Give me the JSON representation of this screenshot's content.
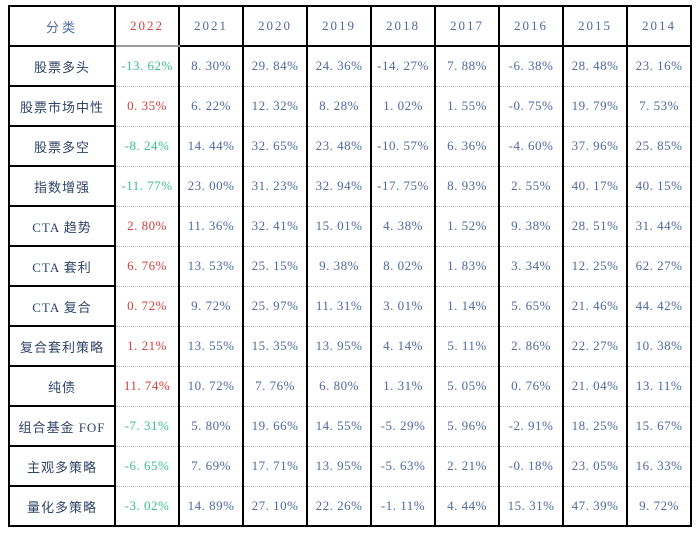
{
  "palette": {
    "background": "#ffffff",
    "grid_black": "#000000",
    "grid_dotted_gray": "#b5b5b5",
    "selected_border_gray": "#9c9c9c",
    "value_blue": "#4e6aa3",
    "label_dark": "#2e4468",
    "header_red": "#d4403c",
    "positive_red": "#d4403c",
    "negative_green": "#3cbf8e"
  },
  "chart_data": {
    "type": "table",
    "columns": [
      "分类",
      "2022",
      "2021",
      "2020",
      "2019",
      "2018",
      "2017",
      "2016",
      "2015",
      "2014"
    ],
    "highlight_column": "2022",
    "rows": [
      {
        "label": "股票多头",
        "values": [
          "-13. 62%",
          "8. 30%",
          "29. 84%",
          "24. 36%",
          "-14. 27%",
          "7. 88%",
          "-6. 38%",
          "28. 48%",
          "23. 16%"
        ]
      },
      {
        "label": "股票市场中性",
        "values": [
          "0. 35%",
          "6. 22%",
          "12. 32%",
          "8. 28%",
          "1. 02%",
          "1. 55%",
          "-0. 75%",
          "19. 79%",
          "7. 53%"
        ]
      },
      {
        "label": "股票多空",
        "values": [
          "-8. 24%",
          "14. 44%",
          "32. 65%",
          "23. 48%",
          "-10. 57%",
          "6. 36%",
          "-4. 60%",
          "37. 96%",
          "25. 85%"
        ]
      },
      {
        "label": "指数增强",
        "values": [
          "-11. 77%",
          "23. 00%",
          "31. 23%",
          "32. 94%",
          "-17. 75%",
          "8. 93%",
          "2. 55%",
          "40. 17%",
          "40. 15%"
        ]
      },
      {
        "label": "CTA 趋势",
        "values": [
          "2. 80%",
          "11. 36%",
          "32. 41%",
          "15. 01%",
          "4. 38%",
          "1. 52%",
          "9. 38%",
          "28. 51%",
          "31. 44%"
        ]
      },
      {
        "label": "CTA 套利",
        "values": [
          "6. 76%",
          "13. 53%",
          "25. 15%",
          "9. 38%",
          "8. 02%",
          "1. 83%",
          "3. 34%",
          "12. 25%",
          "62. 27%"
        ]
      },
      {
        "label": "CTA 复合",
        "values": [
          "0. 72%",
          "9. 72%",
          "25. 97%",
          "11. 31%",
          "3. 01%",
          "1. 14%",
          "5. 65%",
          "21. 46%",
          "44. 42%"
        ]
      },
      {
        "label": "复合套利策略",
        "values": [
          "1. 21%",
          "13. 55%",
          "15. 35%",
          "13. 95%",
          "4. 14%",
          "5. 11%",
          "2. 86%",
          "22. 27%",
          "10. 38%"
        ]
      },
      {
        "label": "纯债",
        "values": [
          "11. 74%",
          "10. 72%",
          "7. 76%",
          "6. 80%",
          "1. 31%",
          "5. 05%",
          "0. 76%",
          "21. 04%",
          "13. 11%"
        ]
      },
      {
        "label": "组合基金 FOF",
        "values": [
          "-7. 31%",
          "5. 80%",
          "19. 66%",
          "14. 55%",
          "-5. 29%",
          "5. 96%",
          "-2. 91%",
          "18. 25%",
          "15. 67%"
        ]
      },
      {
        "label": "主观多策略",
        "values": [
          "-6. 65%",
          "7. 69%",
          "17. 71%",
          "13. 95%",
          "-5. 63%",
          "2. 21%",
          "-0. 18%",
          "23. 05%",
          "16. 33%"
        ]
      },
      {
        "label": "量化多策略",
        "values": [
          "-3. 02%",
          "14. 89%",
          "27. 10%",
          "22. 26%",
          "-1. 11%",
          "4. 44%",
          "15. 31%",
          "47. 39%",
          "9. 72%"
        ]
      }
    ],
    "color_rules": {
      "2022_negative": "green",
      "2022_positive": "red",
      "other_years": "blue"
    }
  }
}
